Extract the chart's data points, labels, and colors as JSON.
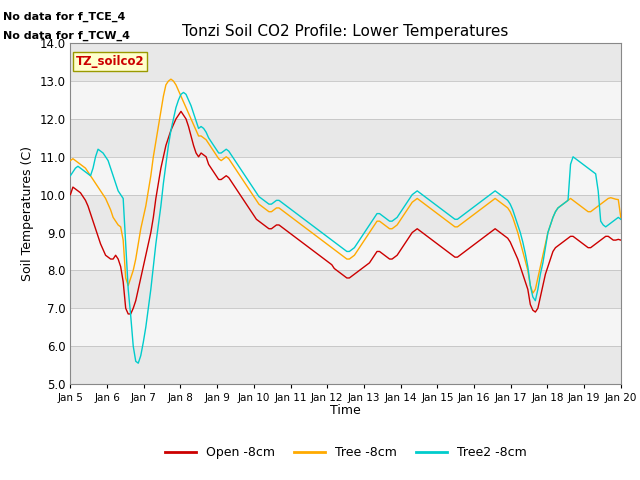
{
  "title": "Tonzi Soil CO2 Profile: Lower Temperatures",
  "ylabel": "Soil Temperatures (C)",
  "xlabel": "Time",
  "top_annotations": [
    "No data for f_TCE_4",
    "No data for f_TCW_4"
  ],
  "box_label": "TZ_soilco2",
  "ylim": [
    5.0,
    14.0
  ],
  "yticks": [
    5.0,
    6.0,
    7.0,
    8.0,
    9.0,
    10.0,
    11.0,
    12.0,
    13.0,
    14.0
  ],
  "xtick_labels": [
    "Jan 5",
    "Jan 6",
    "Jan 7",
    "Jan 8",
    "Jan 9",
    "Jan 10",
    "Jan 11",
    "Jan 12",
    "Jan 13",
    "Jan 14",
    "Jan 15",
    "Jan 16",
    "Jan 17",
    "Jan 18",
    "Jan 19",
    "Jan 20"
  ],
  "bg_bands": [
    {
      "ymin": 5.0,
      "ymax": 6.0,
      "color": "#e8e8e8"
    },
    {
      "ymin": 6.0,
      "ymax": 7.0,
      "color": "#f5f5f5"
    },
    {
      "ymin": 7.0,
      "ymax": 8.0,
      "color": "#e8e8e8"
    },
    {
      "ymin": 8.0,
      "ymax": 9.0,
      "color": "#f5f5f5"
    },
    {
      "ymin": 9.0,
      "ymax": 10.0,
      "color": "#e8e8e8"
    },
    {
      "ymin": 10.0,
      "ymax": 11.0,
      "color": "#f5f5f5"
    },
    {
      "ymin": 11.0,
      "ymax": 12.0,
      "color": "#e8e8e8"
    },
    {
      "ymin": 12.0,
      "ymax": 13.0,
      "color": "#f5f5f5"
    },
    {
      "ymin": 13.0,
      "ymax": 14.0,
      "color": "#e8e8e8"
    }
  ],
  "colors": {
    "open": "#cc0000",
    "tree": "#ffaa00",
    "tree2": "#00cccc"
  },
  "legend": [
    {
      "label": "Open -8cm",
      "color": "#cc0000"
    },
    {
      "label": "Tree -8cm",
      "color": "#ffaa00"
    },
    {
      "label": "Tree2 -8cm",
      "color": "#00cccc"
    }
  ],
  "open_8cm": [
    10.0,
    10.2,
    10.15,
    10.1,
    10.05,
    9.95,
    9.85,
    9.7,
    9.5,
    9.3,
    9.1,
    8.9,
    8.7,
    8.55,
    8.4,
    8.35,
    8.3,
    8.3,
    8.4,
    8.3,
    8.1,
    7.7,
    7.0,
    6.85,
    6.85,
    7.0,
    7.2,
    7.5,
    7.8,
    8.1,
    8.4,
    8.7,
    9.0,
    9.4,
    9.9,
    10.3,
    10.7,
    11.0,
    11.3,
    11.5,
    11.7,
    11.85,
    12.0,
    12.1,
    12.2,
    12.1,
    12.0,
    11.8,
    11.55,
    11.3,
    11.1,
    11.0,
    11.1,
    11.05,
    11.0,
    10.8,
    10.7,
    10.6,
    10.5,
    10.4,
    10.4,
    10.45,
    10.5,
    10.45,
    10.35,
    10.25,
    10.15,
    10.05,
    9.95,
    9.85,
    9.75,
    9.65,
    9.55,
    9.45,
    9.35,
    9.3,
    9.25,
    9.2,
    9.15,
    9.1,
    9.1,
    9.15,
    9.2,
    9.2,
    9.15,
    9.1,
    9.05,
    9.0,
    8.95,
    8.9,
    8.85,
    8.8,
    8.75,
    8.7,
    8.65,
    8.6,
    8.55,
    8.5,
    8.45,
    8.4,
    8.35,
    8.3,
    8.25,
    8.2,
    8.15,
    8.05,
    8.0,
    7.95,
    7.9,
    7.85,
    7.8,
    7.8,
    7.85,
    7.9,
    7.95,
    8.0,
    8.05,
    8.1,
    8.15,
    8.2,
    8.3,
    8.4,
    8.5,
    8.5,
    8.45,
    8.4,
    8.35,
    8.3,
    8.3,
    8.35,
    8.4,
    8.5,
    8.6,
    8.7,
    8.8,
    8.9,
    9.0,
    9.05,
    9.1,
    9.05,
    9.0,
    8.95,
    8.9,
    8.85,
    8.8,
    8.75,
    8.7,
    8.65,
    8.6,
    8.55,
    8.5,
    8.45,
    8.4,
    8.35,
    8.35,
    8.4,
    8.45,
    8.5,
    8.55,
    8.6,
    8.65,
    8.7,
    8.75,
    8.8,
    8.85,
    8.9,
    8.95,
    9.0,
    9.05,
    9.1,
    9.05,
    9.0,
    8.95,
    8.9,
    8.85,
    8.75,
    8.6,
    8.45,
    8.3,
    8.1,
    7.9,
    7.7,
    7.5,
    7.1,
    6.95,
    6.9,
    7.0,
    7.3,
    7.6,
    7.9,
    8.1,
    8.3,
    8.5,
    8.6,
    8.65,
    8.7,
    8.75,
    8.8,
    8.85,
    8.9,
    8.9,
    8.85,
    8.8,
    8.75,
    8.7,
    8.65,
    8.6,
    8.6,
    8.65,
    8.7,
    8.75,
    8.8,
    8.85,
    8.9,
    8.9,
    8.85,
    8.8,
    8.8,
    8.82,
    8.8
  ],
  "tree_8cm": [
    10.9,
    10.95,
    10.9,
    10.85,
    10.8,
    10.75,
    10.7,
    10.6,
    10.5,
    10.4,
    10.3,
    10.2,
    10.1,
    10.0,
    9.9,
    9.75,
    9.6,
    9.4,
    9.3,
    9.2,
    9.15,
    8.8,
    7.8,
    7.6,
    7.8,
    8.0,
    8.3,
    8.7,
    9.1,
    9.4,
    9.7,
    10.1,
    10.5,
    11.0,
    11.4,
    11.8,
    12.2,
    12.6,
    12.9,
    13.0,
    13.05,
    13.0,
    12.9,
    12.75,
    12.6,
    12.45,
    12.3,
    12.15,
    12.0,
    11.85,
    11.7,
    11.55,
    11.55,
    11.5,
    11.45,
    11.35,
    11.25,
    11.15,
    11.05,
    10.95,
    10.9,
    10.95,
    11.0,
    10.95,
    10.85,
    10.75,
    10.65,
    10.55,
    10.45,
    10.35,
    10.25,
    10.15,
    10.05,
    9.95,
    9.85,
    9.75,
    9.7,
    9.65,
    9.6,
    9.55,
    9.55,
    9.6,
    9.65,
    9.65,
    9.6,
    9.55,
    9.5,
    9.45,
    9.4,
    9.35,
    9.3,
    9.25,
    9.2,
    9.15,
    9.1,
    9.05,
    9.0,
    8.95,
    8.9,
    8.85,
    8.8,
    8.75,
    8.7,
    8.65,
    8.6,
    8.55,
    8.5,
    8.45,
    8.4,
    8.35,
    8.3,
    8.3,
    8.35,
    8.4,
    8.5,
    8.6,
    8.7,
    8.8,
    8.9,
    9.0,
    9.1,
    9.2,
    9.3,
    9.3,
    9.25,
    9.2,
    9.15,
    9.1,
    9.1,
    9.15,
    9.2,
    9.3,
    9.4,
    9.5,
    9.6,
    9.7,
    9.8,
    9.85,
    9.9,
    9.85,
    9.8,
    9.75,
    9.7,
    9.65,
    9.6,
    9.55,
    9.5,
    9.45,
    9.4,
    9.35,
    9.3,
    9.25,
    9.2,
    9.15,
    9.15,
    9.2,
    9.25,
    9.3,
    9.35,
    9.4,
    9.45,
    9.5,
    9.55,
    9.6,
    9.65,
    9.7,
    9.75,
    9.8,
    9.85,
    9.9,
    9.85,
    9.8,
    9.75,
    9.7,
    9.65,
    9.55,
    9.4,
    9.2,
    9.0,
    8.75,
    8.5,
    8.25,
    8.0,
    7.6,
    7.4,
    7.5,
    7.8,
    8.1,
    8.4,
    8.7,
    9.0,
    9.2,
    9.4,
    9.55,
    9.65,
    9.7,
    9.75,
    9.8,
    9.85,
    9.9,
    9.85,
    9.8,
    9.75,
    9.7,
    9.65,
    9.6,
    9.55,
    9.55,
    9.6,
    9.65,
    9.7,
    9.75,
    9.8,
    9.85,
    9.9,
    9.92,
    9.9,
    9.88,
    9.87,
    9.4
  ],
  "tree2_8cm": [
    10.5,
    10.6,
    10.7,
    10.75,
    10.7,
    10.65,
    10.6,
    10.55,
    10.5,
    10.7,
    11.0,
    11.2,
    11.15,
    11.1,
    11.0,
    10.9,
    10.7,
    10.5,
    10.3,
    10.1,
    10.0,
    9.9,
    8.7,
    7.5,
    6.8,
    6.0,
    5.6,
    5.55,
    5.75,
    6.1,
    6.5,
    7.0,
    7.5,
    8.1,
    8.7,
    9.2,
    9.7,
    10.3,
    10.8,
    11.3,
    11.7,
    12.0,
    12.3,
    12.5,
    12.65,
    12.7,
    12.65,
    12.5,
    12.35,
    12.15,
    11.95,
    11.75,
    11.8,
    11.75,
    11.65,
    11.5,
    11.4,
    11.3,
    11.2,
    11.1,
    11.1,
    11.15,
    11.2,
    11.15,
    11.05,
    10.95,
    10.85,
    10.75,
    10.65,
    10.55,
    10.45,
    10.35,
    10.25,
    10.15,
    10.05,
    9.95,
    9.9,
    9.85,
    9.8,
    9.75,
    9.75,
    9.8,
    9.85,
    9.85,
    9.8,
    9.75,
    9.7,
    9.65,
    9.6,
    9.55,
    9.5,
    9.45,
    9.4,
    9.35,
    9.3,
    9.25,
    9.2,
    9.15,
    9.1,
    9.05,
    9.0,
    8.95,
    8.9,
    8.85,
    8.8,
    8.75,
    8.7,
    8.65,
    8.6,
    8.55,
    8.5,
    8.5,
    8.55,
    8.6,
    8.7,
    8.8,
    8.9,
    9.0,
    9.1,
    9.2,
    9.3,
    9.4,
    9.5,
    9.5,
    9.45,
    9.4,
    9.35,
    9.3,
    9.3,
    9.35,
    9.4,
    9.5,
    9.6,
    9.7,
    9.8,
    9.9,
    10.0,
    10.05,
    10.1,
    10.05,
    10.0,
    9.95,
    9.9,
    9.85,
    9.8,
    9.75,
    9.7,
    9.65,
    9.6,
    9.55,
    9.5,
    9.45,
    9.4,
    9.35,
    9.35,
    9.4,
    9.45,
    9.5,
    9.55,
    9.6,
    9.65,
    9.7,
    9.75,
    9.8,
    9.85,
    9.9,
    9.95,
    10.0,
    10.05,
    10.1,
    10.05,
    10.0,
    9.95,
    9.9,
    9.85,
    9.75,
    9.6,
    9.4,
    9.2,
    9.0,
    8.75,
    8.45,
    8.1,
    7.6,
    7.3,
    7.2,
    7.5,
    7.9,
    8.2,
    8.6,
    9.0,
    9.2,
    9.4,
    9.55,
    9.65,
    9.7,
    9.75,
    9.8,
    9.85,
    10.8,
    11.0,
    10.95,
    10.9,
    10.85,
    10.8,
    10.75,
    10.7,
    10.65,
    10.6,
    10.55,
    10.1,
    9.3,
    9.2,
    9.15,
    9.2,
    9.25,
    9.3,
    9.35,
    9.4,
    9.35
  ]
}
